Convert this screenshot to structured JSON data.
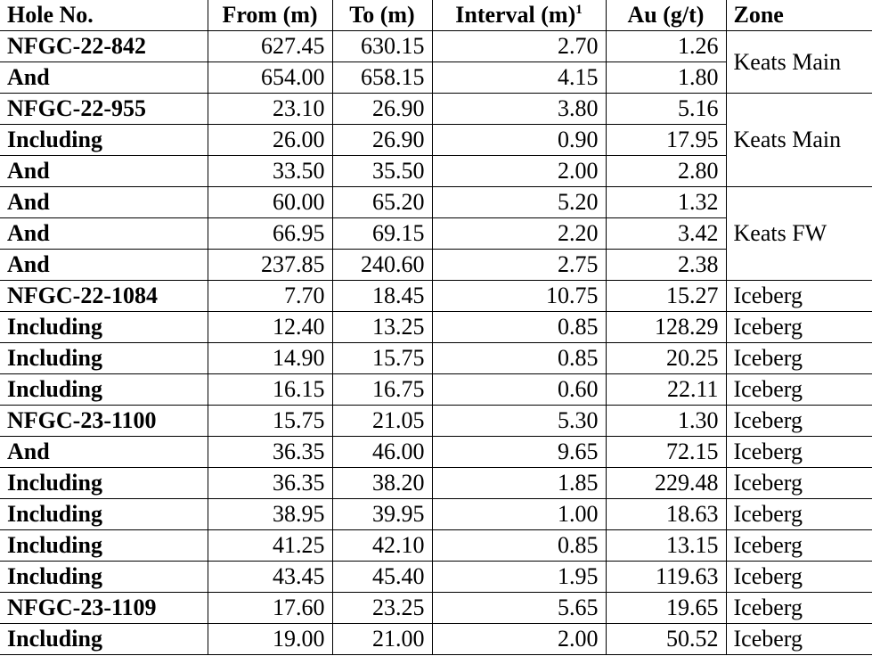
{
  "table": {
    "header": [
      "Hole No.",
      "From (m)",
      "To (m)",
      "Interval (m)",
      "Au (g/t)",
      "Zone"
    ],
    "header_note_mark": "1",
    "rows": [
      [
        "NFGC-22-842",
        "627.45",
        "630.15",
        "2.70",
        "1.26",
        "Keats Main"
      ],
      [
        "And",
        "654.00",
        "658.15",
        "4.15",
        "1.80"
      ],
      [
        "NFGC-22-955",
        "23.10",
        "26.90",
        "3.80",
        "5.16",
        "Keats Main"
      ],
      [
        "Including",
        "26.00",
        "26.90",
        "0.90",
        "17.95"
      ],
      [
        "And",
        "33.50",
        "35.50",
        "2.00",
        "2.80"
      ],
      [
        "And",
        "60.00",
        "65.20",
        "5.20",
        "1.32",
        "Keats FW"
      ],
      [
        "And",
        "66.95",
        "69.15",
        "2.20",
        "3.42"
      ],
      [
        "And",
        "237.85",
        "240.60",
        "2.75",
        "2.38"
      ],
      [
        "NFGC-22-1084",
        "7.70",
        "18.45",
        "10.75",
        "15.27",
        "Iceberg"
      ],
      [
        "Including",
        "12.40",
        "13.25",
        "0.85",
        "128.29",
        "Iceberg"
      ],
      [
        "Including",
        "14.90",
        "15.75",
        "0.85",
        "20.25",
        "Iceberg"
      ],
      [
        "Including",
        "16.15",
        "16.75",
        "0.60",
        "22.11",
        "Iceberg"
      ],
      [
        "NFGC-23-1100",
        "15.75",
        "21.05",
        "5.30",
        "1.30",
        "Iceberg"
      ],
      [
        "And",
        "36.35",
        "46.00",
        "9.65",
        "72.15",
        "Iceberg"
      ],
      [
        "Including",
        "36.35",
        "38.20",
        "1.85",
        "229.48",
        "Iceberg"
      ],
      [
        "Including",
        "38.95",
        "39.95",
        "1.00",
        "18.63",
        "Iceberg"
      ],
      [
        "Including",
        "41.25",
        "42.10",
        "0.85",
        "13.15",
        "Iceberg"
      ],
      [
        "Including",
        "43.45",
        "45.40",
        "1.95",
        "119.63",
        "Iceberg"
      ],
      [
        "NFGC-23-1109",
        "17.60",
        "23.25",
        "5.65",
        "19.65",
        "Iceberg"
      ],
      [
        "Including",
        "19.00",
        "21.00",
        "2.00",
        "50.52",
        "Iceberg"
      ]
    ]
  }
}
